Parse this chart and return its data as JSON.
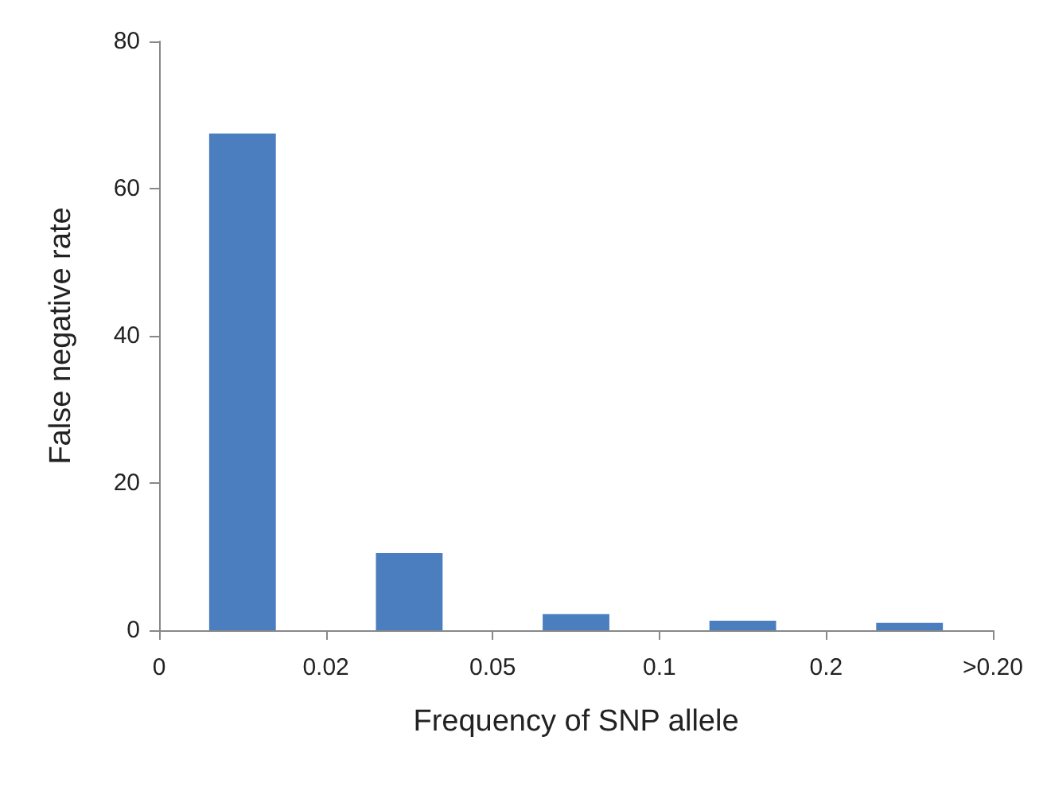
{
  "chart_data": {
    "type": "bar",
    "xlabel": "Frequency of SNP allele",
    "ylabel": "False negative rate",
    "categories": [
      null,
      null,
      null,
      null,
      null
    ],
    "values": [
      67.5,
      10.5,
      2.2,
      1.3,
      1.0
    ],
    "color": "#4a7ebf",
    "annotations": [
      "0",
      "0.02",
      "0.05",
      "0.1",
      "0.2",
      ">0.20"
    ],
    "ylim": [
      0,
      80
    ],
    "yticks": [
      0,
      20,
      40,
      60,
      80
    ],
    "grid": false
  }
}
